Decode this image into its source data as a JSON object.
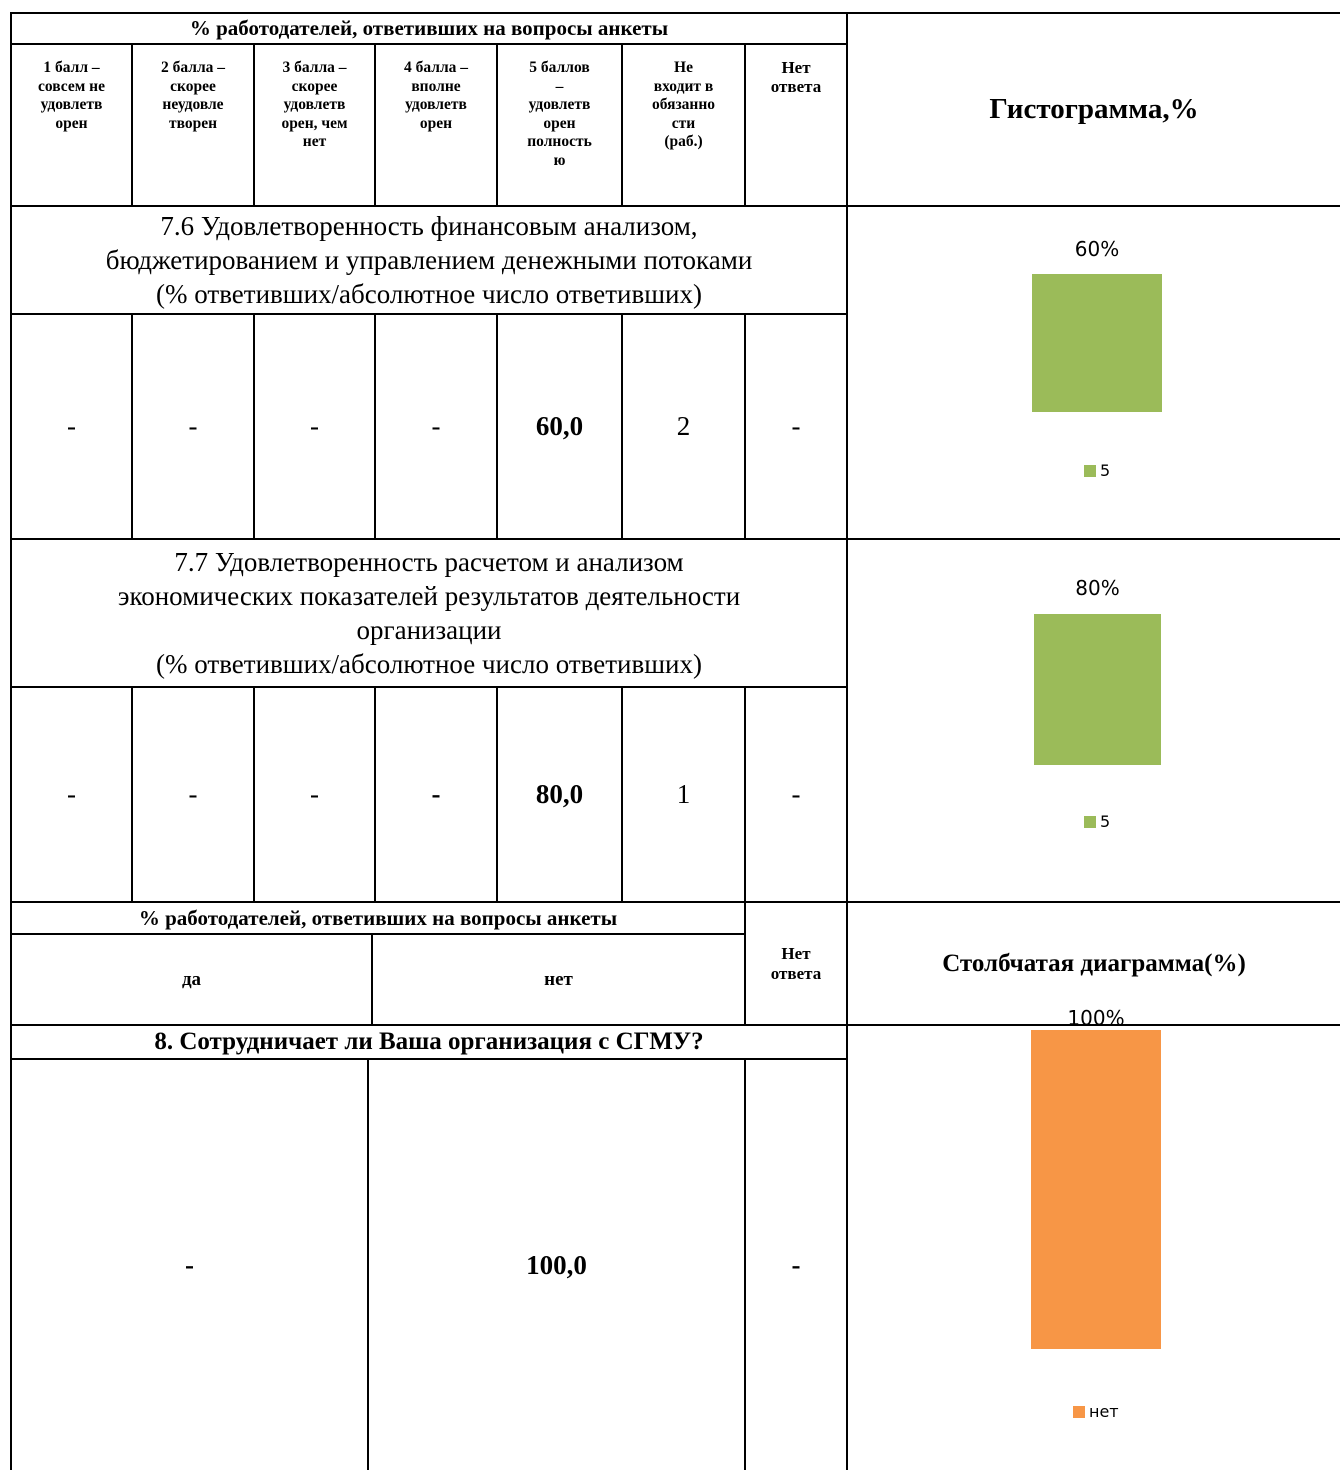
{
  "header_top": {
    "group_title": "% работодателей, ответивших на вопросы анкеты",
    "chart_title": "Гистограмма,%",
    "columns": [
      "1 балл –\nсовсем не\nудовлетв\nорен",
      "2 балла –\nскорее\nнеудовле\nтворен",
      "3 балла –\nскорее\nудовлетв\nорен, чем\nнет",
      "4 балла –\nвполне\nудовлетв\nорен",
      "5 баллов\n–\nудовлетв\nорен\nполность\nю",
      "Не\nвходит в\nобязанно\nсти\n(раб.)",
      "Нет\nответа"
    ]
  },
  "q76": {
    "title": "7.6 Удовлетворенность финансовым анализом,\nбюджетированием и управлением денежными потоками\n(% ответивших/абсолютное число ответивших)",
    "values": [
      "-",
      "-",
      "-",
      "-",
      "60,0",
      "2",
      "-"
    ]
  },
  "q77": {
    "title": "7.7 Удовлетворенность расчетом и анализом\nэкономических показателей результатов деятельности\nорганизации\n(% ответивших/абсолютное число ответивших)",
    "values": [
      "-",
      "-",
      "-",
      "-",
      "80,0",
      "1",
      "-"
    ]
  },
  "header_bottom": {
    "group_title": "% работодателей, ответивших на вопросы анкеты",
    "yes": "да",
    "no": "нет",
    "no_answer": "Нет\nответа",
    "chart_title": "Столбчатая диаграмма(%)"
  },
  "q8": {
    "title": "8. Сотрудничает ли Ваша организация с СГМУ?",
    "values": [
      "-",
      "100,0",
      "-"
    ]
  },
  "chart_data": [
    {
      "type": "bar",
      "categories": [
        ""
      ],
      "series": [
        {
          "name": "5",
          "values": [
            60
          ]
        }
      ],
      "data_labels": [
        "60%"
      ],
      "color": "#9bbb59"
    },
    {
      "type": "bar",
      "categories": [
        ""
      ],
      "series": [
        {
          "name": "5",
          "values": [
            80
          ]
        }
      ],
      "data_labels": [
        "80%"
      ],
      "color": "#9bbb59"
    },
    {
      "type": "bar",
      "categories": [
        ""
      ],
      "series": [
        {
          "name": "нет",
          "values": [
            100
          ]
        }
      ],
      "data_labels": [
        "100%"
      ],
      "color": "#f79646"
    }
  ]
}
